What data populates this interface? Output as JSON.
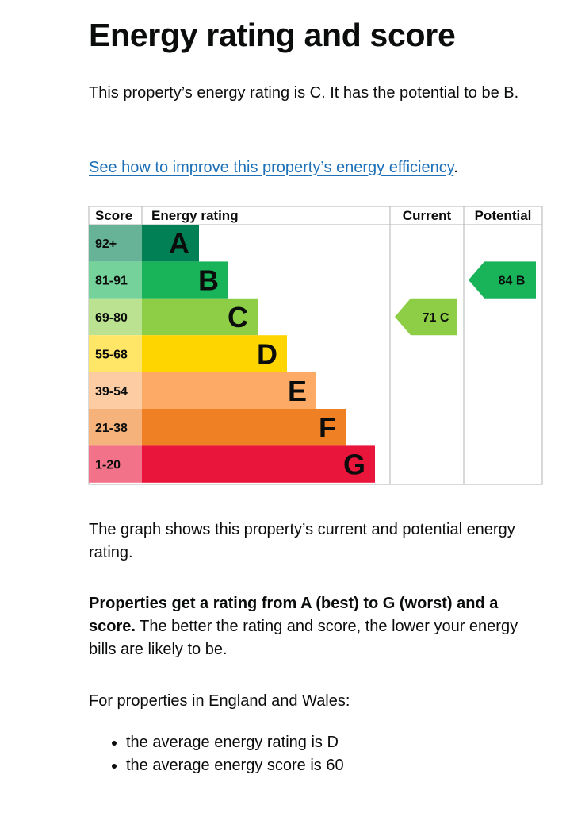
{
  "page": {
    "title": "Energy rating and score",
    "intro": "This property’s energy rating is C. It has the potential to be B.",
    "improve_link": "See how to improve this property’s energy efficiency",
    "improve_link_suffix": ".",
    "graph_text": "The graph shows this property’s current and potential energy rating.",
    "ratings_bold": "Properties get a rating from A (best) to G (worst) and a score.",
    "ratings_rest": " The better the rating and score, the lower your energy bills are likely to be.",
    "england_wales": "For properties in England and Wales:",
    "bullets": [
      "the average energy rating is D",
      "the average energy score is 60"
    ]
  },
  "chart_data": {
    "type": "table",
    "columns": [
      "Score",
      "Energy rating",
      "Current",
      "Potential"
    ],
    "bands": [
      {
        "letter": "A",
        "range": "92+",
        "color": "#008054",
        "score_color": "#66b398"
      },
      {
        "letter": "B",
        "range": "81-91",
        "color": "#19b459",
        "score_color": "#75d29b"
      },
      {
        "letter": "C",
        "range": "69-80",
        "color": "#8dce46",
        "score_color": "#bbe290"
      },
      {
        "letter": "D",
        "range": "55-68",
        "color": "#ffd500",
        "score_color": "#ffe666"
      },
      {
        "letter": "E",
        "range": "39-54",
        "color": "#fcaa65",
        "score_color": "#fdcca3"
      },
      {
        "letter": "F",
        "range": "21-38",
        "color": "#ef8023",
        "score_color": "#f5b37b"
      },
      {
        "letter": "G",
        "range": "1-20",
        "color": "#e9153b",
        "score_color": "#f27389"
      }
    ],
    "current": {
      "score": 71,
      "band": "C",
      "label": "71 C",
      "color": "#8dce46"
    },
    "potential": {
      "score": 84,
      "band": "B",
      "label": "84 B",
      "color": "#19b459"
    }
  }
}
